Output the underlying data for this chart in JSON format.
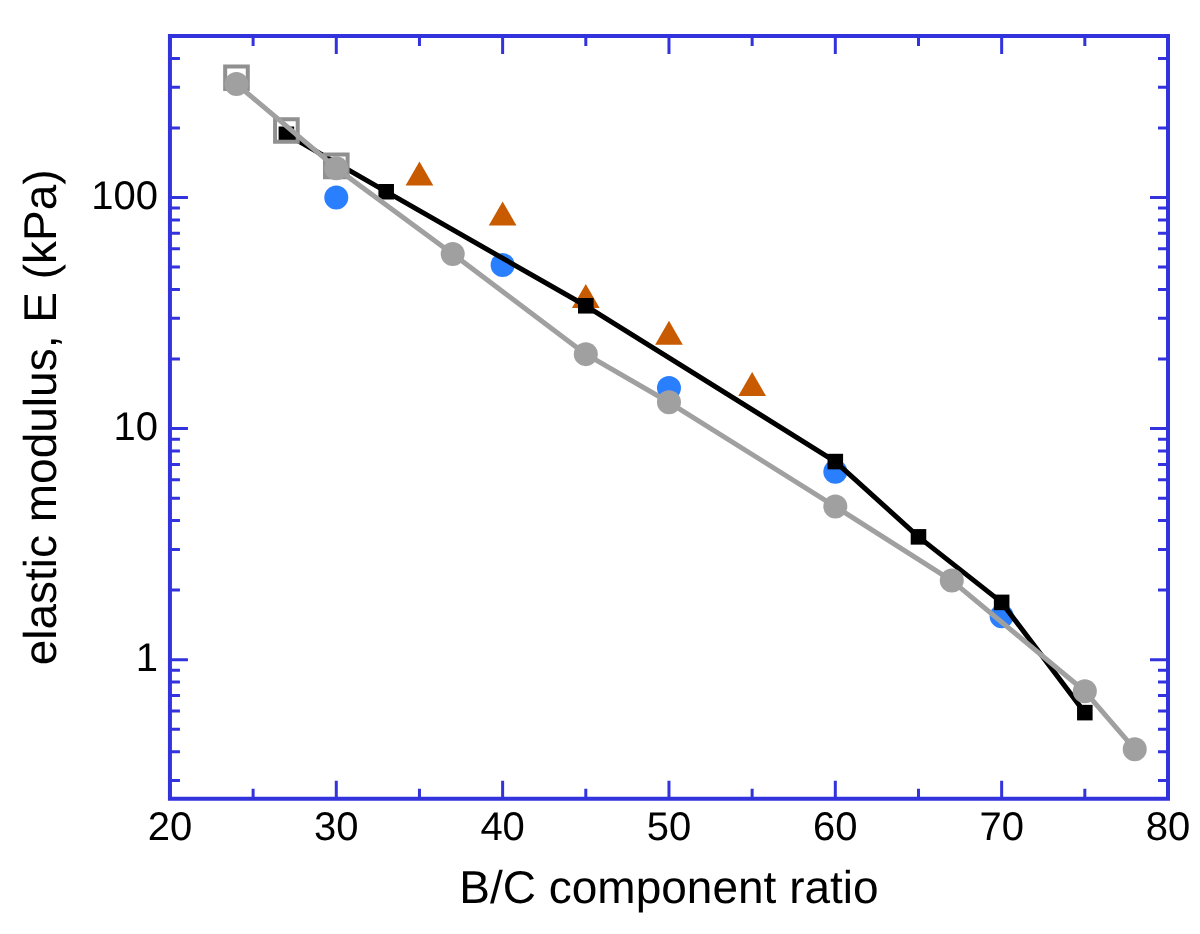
{
  "chart_data": {
    "type": "scatter",
    "xlabel": "B/C component ratio",
    "ylabel": "elastic modulus, E (kPa)",
    "log": "y",
    "grid": false,
    "legend": false,
    "xlim": [
      20,
      80
    ],
    "xticks": [
      20,
      {
        "value": 25,
        "label": null
      },
      30,
      {
        "value": 35,
        "label": null
      },
      40,
      {
        "value": 45,
        "label": null
      },
      50,
      {
        "value": 55,
        "label": null
      },
      60,
      {
        "value": 65,
        "label": null
      },
      70,
      {
        "value": 75,
        "label": null
      },
      80
    ],
    "ylim": [
      0.25,
      500
    ],
    "yticks": [
      {
        "value": 0.3,
        "label": null
      },
      {
        "value": 0.4,
        "label": null
      },
      {
        "value": 0.5,
        "label": null
      },
      {
        "value": 0.6,
        "label": null
      },
      {
        "value": 0.7,
        "label": null
      },
      {
        "value": 0.8,
        "label": null
      },
      {
        "value": 0.9,
        "label": null
      },
      1,
      {
        "value": 2,
        "label": null
      },
      {
        "value": 3,
        "label": null
      },
      {
        "value": 4,
        "label": null
      },
      {
        "value": 5,
        "label": null
      },
      {
        "value": 6,
        "label": null
      },
      {
        "value": 7,
        "label": null
      },
      {
        "value": 8,
        "label": null
      },
      {
        "value": 9,
        "label": null
      },
      10,
      {
        "value": 20,
        "label": null
      },
      {
        "value": 30,
        "label": null
      },
      {
        "value": 40,
        "label": null
      },
      {
        "value": 50,
        "label": null
      },
      {
        "value": 60,
        "label": null
      },
      {
        "value": 70,
        "label": null
      },
      {
        "value": 80,
        "label": null
      },
      {
        "value": 90,
        "label": null
      },
      100,
      {
        "value": 200,
        "label": null
      },
      {
        "value": 300,
        "label": null
      },
      {
        "value": 400,
        "label": null
      }
    ],
    "series": [
      {
        "type": "line",
        "color": "#a0a0a0",
        "marker": "circle",
        "x": [
          24,
          30,
          37,
          45,
          50,
          60,
          67,
          75,
          78
        ],
        "values": [
          310,
          134,
          57,
          21,
          13,
          4.6,
          2.2,
          0.73,
          0.41
        ]
      },
      {
        "type": "scatter",
        "color": "#909090",
        "marker": "square",
        "x": [
          24,
          27,
          30
        ],
        "values": [
          330,
          195,
          137
        ]
      },
      {
        "type": "line",
        "color": "#000000",
        "marker": "square",
        "x": [
          27,
          33,
          45,
          60,
          65,
          70,
          75
        ],
        "values": [
          188,
          106,
          34,
          7.2,
          3.4,
          1.77,
          0.59
        ]
      },
      {
        "type": "scatter",
        "color": "#2a7fff",
        "marker": "circle",
        "x": [
          30,
          40,
          50,
          60,
          70
        ],
        "values": [
          100,
          51,
          15,
          6.5,
          1.54
        ]
      },
      {
        "type": "scatter",
        "color": "#c85a00",
        "marker": "triangle",
        "x": [
          35,
          40,
          45,
          50,
          55
        ],
        "values": [
          122,
          82,
          36,
          25,
          15
        ]
      }
    ]
  }
}
